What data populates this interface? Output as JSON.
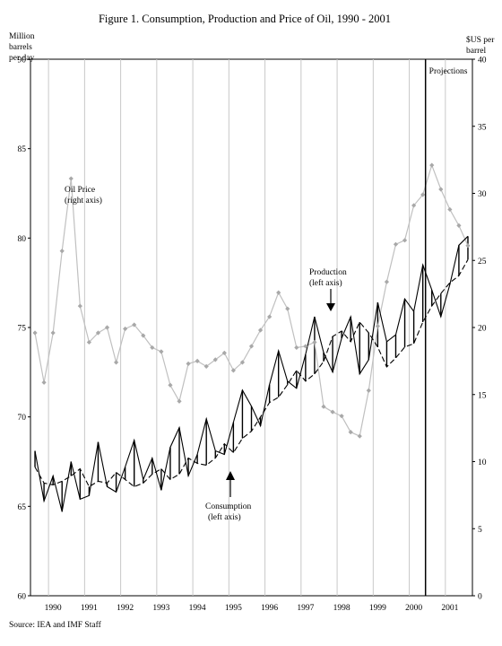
{
  "chart_data": {
    "type": "line",
    "title": "Figure 1. Consumption, Production and Price of Oil, 1990 - 2001",
    "y_left_label": [
      "Million",
      "barrels",
      "per day"
    ],
    "y_right_label": [
      "$US per",
      "barrel"
    ],
    "y_left_ticks": [
      "60",
      "65",
      "70",
      "75",
      "80",
      "85",
      "90"
    ],
    "y_right_ticks": [
      "0",
      "5",
      "10",
      "15",
      "20",
      "25",
      "30",
      "35",
      "40"
    ],
    "ylim_left": [
      60,
      90
    ],
    "ylim_right": [
      0,
      40
    ],
    "x_years": [
      "1990",
      "1991",
      "1992",
      "1993",
      "1994",
      "1995",
      "1996",
      "1997",
      "1998",
      "1999",
      "2000",
      "2001"
    ],
    "x_range": [
      1989.5,
      2001.75
    ],
    "projection_start": 2000.45,
    "projection_label": "Projections",
    "grid": "vertical lines at year boundaries",
    "source": "Source: IEA and IMF Staff",
    "annotations": [
      {
        "text": [
          "Oil Price",
          "(right axis)"
        ],
        "series": "price"
      },
      {
        "text": [
          "Production",
          "(left axis)"
        ],
        "series": "production"
      },
      {
        "text": [
          "Consumption",
          "(left axis)"
        ],
        "series": "consumption"
      }
    ],
    "series": [
      {
        "name": "Oil Price",
        "axis": "right",
        "color": "#c0c0c0",
        "x": [
          1989.625,
          1989.875,
          1990.125,
          1990.375,
          1990.625,
          1990.875,
          1991.125,
          1991.375,
          1991.625,
          1991.875,
          1992.125,
          1992.375,
          1992.625,
          1992.875,
          1993.125,
          1993.375,
          1993.625,
          1993.875,
          1994.125,
          1994.375,
          1994.625,
          1994.875,
          1995.125,
          1995.375,
          1995.625,
          1995.875,
          1996.125,
          1996.375,
          1996.625,
          1996.875,
          1997.125,
          1997.375,
          1997.625,
          1997.875,
          1998.125,
          1998.375,
          1998.625,
          1998.875,
          1999.125,
          1999.375,
          1999.625,
          1999.875,
          2000.125,
          2000.375,
          2000.625,
          2000.875,
          2001.125,
          2001.375,
          2001.625
        ],
        "y": [
          19.6,
          15.9,
          19.6,
          25.7,
          31.1,
          21.6,
          18.9,
          19.6,
          20,
          17.4,
          19.9,
          20.2,
          19.4,
          18.5,
          18.2,
          15.7,
          14.5,
          17.3,
          17.5,
          17.1,
          17.6,
          18.1,
          16.8,
          17.4,
          18.6,
          19.8,
          20.8,
          22.6,
          21.4,
          18.5,
          18.6,
          18.9,
          14.1,
          13.7,
          13.4,
          12.2,
          11.9,
          15.3,
          20.1,
          23.4,
          26.2,
          26.5,
          29.1,
          29.9,
          32.1,
          30.3,
          28.8,
          27.6,
          26.1
        ]
      },
      {
        "name": "Production",
        "axis": "left",
        "color": "#000000",
        "dash": "dashed",
        "x": [
          1989.625,
          1989.875,
          1990.125,
          1990.375,
          1990.625,
          1990.875,
          1991.125,
          1991.375,
          1991.625,
          1991.875,
          1992.125,
          1992.375,
          1992.625,
          1992.875,
          1993.125,
          1993.375,
          1993.625,
          1993.875,
          1994.125,
          1994.375,
          1994.625,
          1994.875,
          1995.125,
          1995.375,
          1995.625,
          1995.875,
          1996.125,
          1996.375,
          1996.625,
          1996.875,
          1997.125,
          1997.375,
          1997.625,
          1997.875,
          1998.125,
          1998.375,
          1998.625,
          1998.875,
          1999.125,
          1999.375,
          1999.625,
          1999.875,
          2000.125,
          2000.375,
          2000.625,
          2000.875,
          2001.125,
          2001.375,
          2001.625
        ],
        "y": [
          67.2,
          66.3,
          66.2,
          66.4,
          66.7,
          67.1,
          66.1,
          66.4,
          66.3,
          66.9,
          66.5,
          66.1,
          66.3,
          66.8,
          67.1,
          66.5,
          66.8,
          67.7,
          67.4,
          67.3,
          67.7,
          68.5,
          68,
          68.8,
          69.2,
          70,
          70.8,
          71.1,
          71.8,
          72.6,
          72,
          72.4,
          73.1,
          74.5,
          74.8,
          74.2,
          75.3,
          74.7,
          73.9,
          72.8,
          73.3,
          73.9,
          74.1,
          75.3,
          76.2,
          76.9,
          77.5,
          77.9,
          78.8
        ]
      },
      {
        "name": "Consumption",
        "axis": "left",
        "color": "#000000",
        "dash": "solid",
        "x": [
          1989.625,
          1989.875,
          1990.125,
          1990.375,
          1990.625,
          1990.875,
          1991.125,
          1991.375,
          1991.625,
          1991.875,
          1992.125,
          1992.375,
          1992.625,
          1992.875,
          1993.125,
          1993.375,
          1993.625,
          1993.875,
          1994.125,
          1994.375,
          1994.625,
          1994.875,
          1995.125,
          1995.375,
          1995.625,
          1995.875,
          1996.125,
          1996.375,
          1996.625,
          1996.875,
          1997.125,
          1997.375,
          1997.625,
          1997.875,
          1998.125,
          1998.375,
          1998.625,
          1998.875,
          1999.125,
          1999.375,
          1999.625,
          1999.875,
          2000.125,
          2000.375,
          2000.625,
          2000.875,
          2001.125,
          2001.375,
          2001.625
        ],
        "y": [
          68.1,
          65.3,
          66.7,
          64.7,
          67.5,
          65.4,
          65.6,
          68.6,
          66.1,
          65.8,
          67.2,
          68.7,
          66.5,
          67.7,
          65.9,
          68.3,
          69.4,
          66.7,
          67.9,
          69.9,
          68.1,
          67.9,
          69.7,
          71.5,
          70.6,
          69.5,
          71.8,
          73.7,
          72,
          71.6,
          73.5,
          75.6,
          73.6,
          72.5,
          74.4,
          75.6,
          72.4,
          73.2,
          76.4,
          74.2,
          74.6,
          76.6,
          75.9,
          78.5,
          77.1,
          75.6,
          77.4,
          79.6,
          80.1
        ]
      }
    ]
  }
}
